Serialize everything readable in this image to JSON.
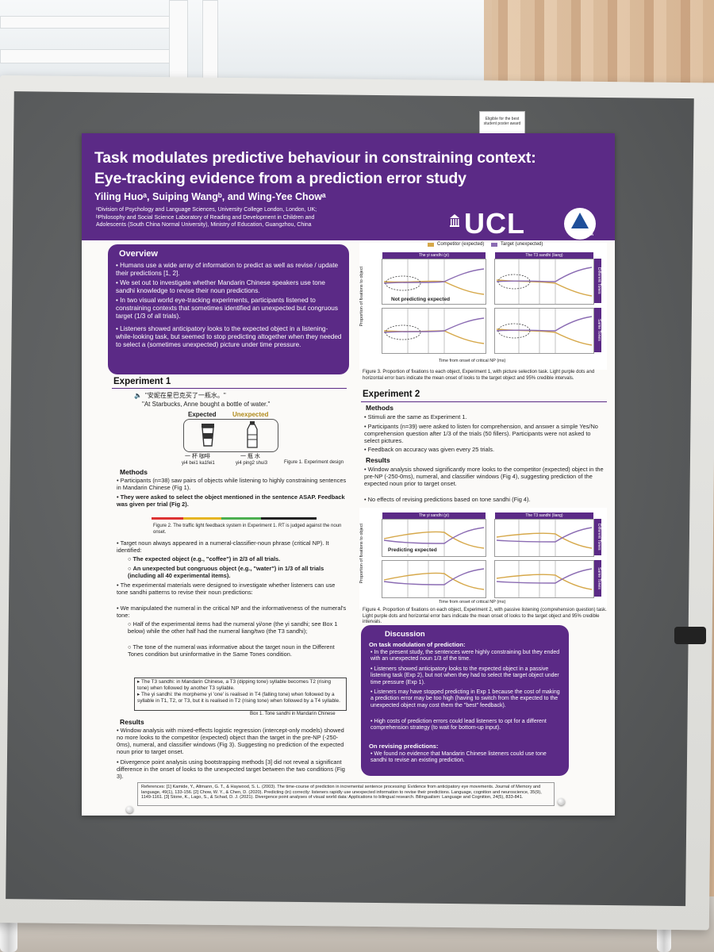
{
  "badge": "Eligible for the best student poster award",
  "header": {
    "title_line1": "Task modulates predictive behaviour in constraining context:",
    "title_line2": "Eye-tracking evidence from a prediction error study",
    "authors": "Yiling Huoᵃ, Suiping Wangᵇ, and Wing-Yee Chowᵃ",
    "affiliation_a": "ᵃDivision of Psychology and Language Sciences, University College London, London, UK;",
    "affiliation_b1": "ᵇPhilosophy and Social Science Laboratory of Reading and Development in Children and",
    "affiliation_b2": "Adolescents (South China Normal University), Ministry of Education, Guangzhou, China",
    "ucl_logo": "UCL",
    "scnu_logo": "SCNU-RDCA"
  },
  "overview": {
    "heading": "Overview",
    "bullets": [
      "Humans use a wide array of information to predict as well as revise / update their predictions [1, 2].",
      "We set out to investigate whether Mandarin Chinese speakers use tone sandhi knowledge to revise their noun predictions.",
      "In two visual world eye-tracking experiments, participants listened to constraining contexts that sometimes identified an unexpected but congruous target (1/3 of all trials).",
      "Listeners showed anticipatory looks to the expected object in a listening-while-looking task, but seemed to stop predicting altogether when they needed to select a (sometimes unexpected) picture under time pressure."
    ]
  },
  "exp1": {
    "heading": "Experiment 1",
    "example_zh": "\"安妮在星巴克买了一瓶水。\"",
    "example_en": "\"At Starbucks, Anne bought a bottle of water.\"",
    "expected_label": "Expected",
    "unexpected_label": "Unexpected",
    "gloss_left_zh": "一 杯 咖啡",
    "gloss_left_py": "yi4 bei1 ka1fei1",
    "gloss_right_zh": "一 瓶 水",
    "gloss_right_py": "yi4 ping2 shui3",
    "fig1_caption": "Figure 1. Experiment design",
    "methods_heading": "Methods",
    "methods_1": "Participants (n=38) saw pairs of objects while listening to highly constraining sentences in Mandarin Chinese (Fig 1).",
    "methods_2": "They were asked to select the object mentioned in the sentence ASAP. Feedback was given per trial (Fig 2).",
    "fig2_caption": "Figure 2. The traffic light feedback system in Experiment 1. RT is judged against the noun onset.",
    "methods_3": "Target noun always appeared in a numeral-classifier-noun phrase (critical NP). It identified:",
    "methods_3a": "The expected object (e.g., \"coffee\") in 2/3 of all trials.",
    "methods_3b": "An unexpected but congruous object (e.g., \"water\") in 1/3 of all trials (including all 40 experimental items).",
    "methods_4": "The experimental materials were designed to investigate whether listeners can use tone sandhi patterns to revise their noun predictions:",
    "methods_5": "We manipulated the numeral in the critical NP and the informativeness of the numeral's tone:",
    "methods_5a": "Half of the experimental items had the numeral yi/one (the yi sandhi; see Box 1 below) while the other half had the numeral liang/two (the T3 sandhi);",
    "methods_5b": "The tone of the numeral was informative about the target noun in the Different Tones condition but uninformative in the Same Tones condition.",
    "box1_a": "The T3 sandhi: in Mandarin Chinese, a T3 (dipping tone) syllable becomes T2 (rising tone) when followed by another T3 syllable.",
    "box1_b": "The yi sandhi: the morpheme yi 'one' is realised in T4 (falling tone) when followed by a syllable in T1, T2, or T3, but it is realised in T2 (rising tone) when followed by a T4 syllable.",
    "box1_caption": "Box 1. Tone sandhi in Mandarin Chinese",
    "results_heading": "Results",
    "results_1": "Window analysis with mixed-effects logistic regression (intercept-only models) showed no more looks to the competitor (expected) object than the target in the pre-NP (-250-0ms), numeral, and classifier windows (Fig 3). Suggesting no prediction of the expected noun prior to target onset.",
    "results_2": "Divergence point analysis using bootstrapping methods [3] did not reveal a significant difference in the onset of looks to the unexpected target between the two conditions (Fig 3)."
  },
  "fig3": {
    "legend_competitor": "Competitor (expected)",
    "legend_target": "Target (unexpected)",
    "panel_left": "The yi sandhi (yi)",
    "panel_right": "The T3 sandhi (liang)",
    "side_top": "Different Tones",
    "side_bottom": "Same Tones",
    "annotation": "Not predicting expected",
    "ylabel": "Proportion of fixations to object",
    "xlabel": "Time from onset of critical NP (ms)",
    "caption": "Figure 3. Proportion of fixations to each object, Experiment 1, with picture selection task. Light purple dots and horizontal error bars indicate the mean onset of looks to the target object and 95% credible intervals."
  },
  "exp2": {
    "heading": "Experiment 2",
    "methods_heading": "Methods",
    "methods_1": "Stimuli are the same as Experiment 1.",
    "methods_2": "Participants (n=39) were asked to listen for comprehension, and answer a simple Yes/No comprehension question after 1/3 of the trials (50 fillers). Participants were not asked to select pictures.",
    "methods_3": "Feedback on accuracy was given every 25 trials.",
    "results_heading": "Results",
    "results_1": "Window analysis showed significantly more looks to the competitor (expected) object in the pre-NP (-250-0ms), numeral, and classifier windows (Fig 4), suggesting prediction of the expected noun prior to target onset.",
    "results_2": "No effects of revising predictions based on tone sandhi (Fig 4)."
  },
  "fig4": {
    "annotation": "Predicting expected",
    "caption": "Figure 4. Proportion of fixations on each object, Experiment 2, with passive listening (comprehension question) task. Light purple dots and horizontal error bars indicate the mean onset of looks to the target object and 95% credible intervals."
  },
  "discussion": {
    "heading": "Discussion",
    "sub1": "On task modulation of prediction:",
    "b1": "In the present study, the sentences were highly constraining but they ended with an unexpected noun 1/3 of the time.",
    "b2": "Listeners showed anticipatory looks to the expected object in a passive listening task (Exp 2), but not when they had to select the target object under time pressure (Exp 1).",
    "b3": "Listeners may have stopped predicting in Exp 1 because the cost of making a prediction error may be too high (having to switch from the expected to the unexpected object may cost them the \"best\" feedback).",
    "b4": "High costs of prediction errors could lead listeners to opt for a different comprehension strategy (to wait for bottom-up input).",
    "sub2": "On revising predictions:",
    "b5": "We found no evidence that Mandarin Chinese listeners could use tone sandhi to revise an existing prediction."
  },
  "references": "References: [1] Kamide, Y., Altmann, G. T., & Haywood, S. L. (2003). The time-course of prediction in incremental sentence processing: Evidence from anticipatory eye movements. Journal of Memory and language, 49(1), 133-156. [2] Chow, W. Y., & Chen, D. (2020). Predicting (in) correctly: listeners rapidly use unexpected information to revise their predictions. Language, cognition and neuroscience, 35(9), 1149-1161. [3] Stone, K., Lago, S., & Schad, D. J. (2021). Divergence point analyses of visual world data: Applications to bilingual research. Bilingualism: Language and Cognition, 24(5), 833-841.",
  "colors": {
    "purple": "#5b2a86",
    "competitor": "#d6a84a",
    "target": "#8b6cb3"
  }
}
